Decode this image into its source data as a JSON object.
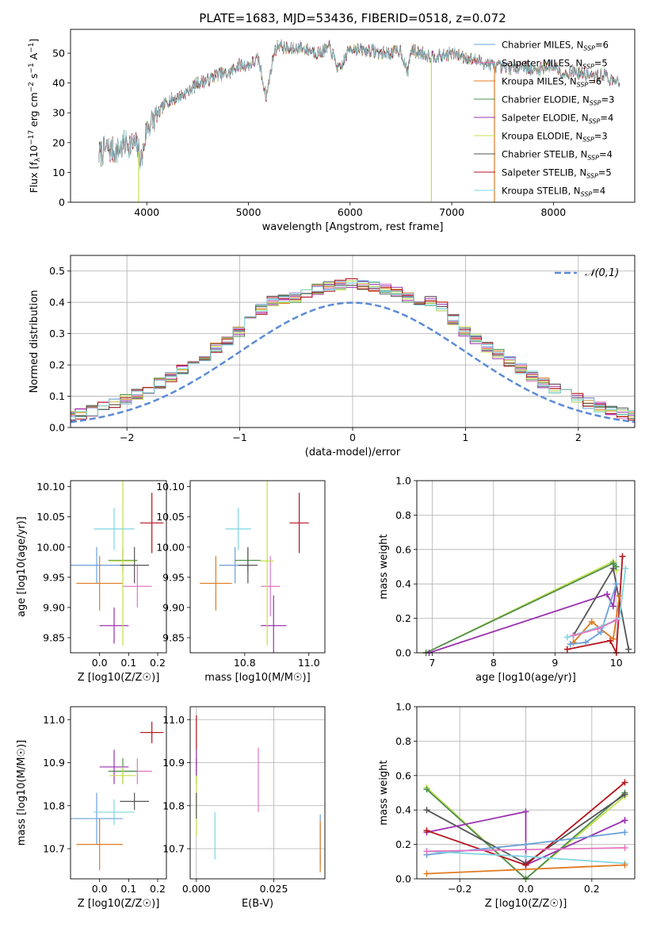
{
  "figure": {
    "title": "PLATE=1683, MJD=53436, FIBERID=0518, z=0.072"
  },
  "series": [
    {
      "name": "Chabrier MILES",
      "legend": "Chabrier MILES, N_SSP=6",
      "color": "#6aa0d8"
    },
    {
      "name": "Salpeter MILES",
      "legend": "Salpeter MILES, N_SSP=5",
      "color": "#e377c2"
    },
    {
      "name": "Kroupa MILES",
      "legend": "Kroupa MILES, N_SSP=6",
      "color": "#e07b22"
    },
    {
      "name": "Chabrier ELODIE",
      "legend": "Chabrier ELODIE, N_SSP=3",
      "color": "#4f8f4f"
    },
    {
      "name": "Salpeter ELODIE",
      "legend": "Salpeter ELODIE, N_SSP=4",
      "color": "#9b30b0"
    },
    {
      "name": "Kroupa ELODIE",
      "legend": "Kroupa ELODIE, N_SSP=3",
      "color": "#c4e04a"
    },
    {
      "name": "Chabrier STELIB",
      "legend": "Chabrier STELIB, N_SSP=4",
      "color": "#555555"
    },
    {
      "name": "Salpeter STELIB",
      "legend": "Salpeter STELIB, N_SSP=5",
      "color": "#b5131c"
    },
    {
      "name": "Kroupa STELIB",
      "legend": "Kroupa STELIB, N_SSP=4",
      "color": "#7fd6e0"
    }
  ],
  "chart_data": [
    {
      "id": "spectrum",
      "type": "line",
      "title": "PLATE=1683, MJD=53436, FIBERID=0518, z=0.072",
      "xlabel": "wavelength [Angstrom, rest frame]",
      "ylabel": "Flux [f_λ 10^-17 erg cm^-2 s^-1 A^-1]",
      "xlim": [
        3250,
        8800
      ],
      "ylim": [
        0,
        58
      ],
      "xticks": [
        4000,
        5000,
        6000,
        7000,
        8000
      ],
      "yticks": [
        0,
        10,
        20,
        30,
        40,
        50
      ],
      "legend_placement": "upper right",
      "x": [
        3530,
        3600,
        3700,
        3800,
        3900,
        3950,
        4000,
        4100,
        4200,
        4300,
        4400,
        4500,
        4600,
        4700,
        4800,
        4900,
        5000,
        5100,
        5175,
        5250,
        5300,
        5400,
        5500,
        5600,
        5700,
        5800,
        5893,
        6000,
        6100,
        6200,
        6300,
        6400,
        6500,
        6563,
        6600,
        6700,
        6800,
        6900,
        7000,
        7100,
        7200,
        7300,
        7400,
        7500,
        7600,
        7700,
        7800,
        7900,
        8000,
        8100,
        8200,
        8300,
        8400,
        8500,
        8600,
        8650
      ],
      "values": [
        16,
        18,
        17,
        20,
        19,
        14,
        25,
        29,
        34,
        35,
        37,
        40,
        41,
        43,
        43,
        46,
        46,
        48,
        35,
        50,
        53,
        51,
        52,
        51,
        50,
        52,
        44,
        52,
        51,
        51,
        50,
        50,
        51,
        43,
        51,
        50,
        49,
        49,
        50,
        49,
        48,
        47,
        46,
        45,
        45,
        46,
        44,
        45,
        46,
        43,
        44,
        43,
        42,
        43,
        40,
        41
      ],
      "dropouts": [
        {
          "series": "Kroupa ELODIE",
          "x": 3920
        },
        {
          "series": "Kroupa ELODIE",
          "x": 6800
        },
        {
          "series": "Kroupa MILES",
          "x": 7420
        }
      ]
    },
    {
      "id": "residuals",
      "type": "histogram",
      "xlabel": "(data-model)/error",
      "ylabel": "Normed distribution",
      "xlim": [
        -2.5,
        2.5
      ],
      "ylim": [
        0,
        0.55
      ],
      "xticks": [
        -2,
        -1,
        0,
        1,
        2
      ],
      "yticks": [
        0.0,
        0.1,
        0.2,
        0.3,
        0.4,
        0.5
      ],
      "grid": true,
      "reference_curve": {
        "label": "𝒩(0,1)",
        "mean": 0,
        "sd": 1,
        "style": "dashed",
        "color": "#5b8bd6"
      },
      "bin_width": 0.1,
      "legend_placement": "upper right"
    },
    {
      "id": "age_vs_Z",
      "type": "errorbar",
      "xlabel": "Z [log10(Z/Z☉)]",
      "ylabel": "age [log10(age/yr)]",
      "xlim": [
        -0.1,
        0.23
      ],
      "ylim": [
        9.825,
        10.11
      ],
      "xticks": [
        0.0,
        0.1,
        0.2
      ],
      "yticks": [
        9.85,
        9.9,
        9.95,
        10.0,
        10.05,
        10.1
      ],
      "points": [
        {
          "series": "Chabrier MILES",
          "x": -0.01,
          "y": 9.97,
          "xerr": 0.09,
          "yerr": 0.03
        },
        {
          "series": "Salpeter MILES",
          "x": 0.13,
          "y": 9.935,
          "xerr": 0.05,
          "yerr": 0.035
        },
        {
          "series": "Kroupa MILES",
          "x": 0.0,
          "y": 9.94,
          "xerr": 0.08,
          "yerr": 0.045
        },
        {
          "series": "Chabrier ELODIE",
          "x": 0.08,
          "y": 9.978,
          "xerr": 0.05,
          "yerr": 0.02
        },
        {
          "series": "Salpeter ELODIE",
          "x": 0.05,
          "y": 9.87,
          "xerr": 0.05,
          "yerr": 0.03
        },
        {
          "series": "Kroupa ELODIE",
          "x": 0.08,
          "y": 9.977,
          "xerr": 0.045,
          "yerr": 0.14
        },
        {
          "series": "Chabrier STELIB",
          "x": 0.12,
          "y": 9.97,
          "xerr": 0.05,
          "yerr": 0.03
        },
        {
          "series": "Salpeter STELIB",
          "x": 0.18,
          "y": 10.04,
          "xerr": 0.04,
          "yerr": 0.05
        },
        {
          "series": "Kroupa STELIB",
          "x": 0.05,
          "y": 10.03,
          "xerr": 0.07,
          "yerr": 0.035
        }
      ]
    },
    {
      "id": "age_vs_mass",
      "type": "errorbar",
      "xlabel": "mass [log10(M/M☉)]",
      "ylabel": "",
      "xlim": [
        10.63,
        11.05
      ],
      "ylim": [
        9.825,
        10.11
      ],
      "xticks": [
        10.8,
        11.0
      ],
      "yticks": [
        9.85,
        9.9,
        9.95,
        10.0,
        10.05,
        10.1
      ],
      "points": [
        {
          "series": "Chabrier MILES",
          "x": 10.77,
          "y": 9.97,
          "xerr": 0.05,
          "yerr": 0.03
        },
        {
          "series": "Salpeter MILES",
          "x": 10.88,
          "y": 9.935,
          "xerr": 0.03,
          "yerr": 0.05
        },
        {
          "series": "Kroupa MILES",
          "x": 10.71,
          "y": 9.94,
          "xerr": 0.05,
          "yerr": 0.045
        },
        {
          "series": "Chabrier ELODIE",
          "x": 10.81,
          "y": 9.978,
          "xerr": 0.04,
          "yerr": 0.02
        },
        {
          "series": "Salpeter ELODIE",
          "x": 10.89,
          "y": 9.87,
          "xerr": 0.04,
          "yerr": 0.05
        },
        {
          "series": "Kroupa ELODIE",
          "x": 10.87,
          "y": 9.977,
          "xerr": 0.02,
          "yerr": 0.14
        },
        {
          "series": "Chabrier STELIB",
          "x": 10.81,
          "y": 9.97,
          "xerr": 0.03,
          "yerr": 0.03
        },
        {
          "series": "Salpeter STELIB",
          "x": 10.97,
          "y": 10.04,
          "xerr": 0.03,
          "yerr": 0.05
        },
        {
          "series": "Kroupa STELIB",
          "x": 10.78,
          "y": 10.03,
          "xerr": 0.04,
          "yerr": 0.035
        }
      ]
    },
    {
      "id": "weight_vs_age",
      "type": "line",
      "xlabel": "age [log10(age/yr)]",
      "ylabel": "mass weight",
      "xlim": [
        6.75,
        10.3
      ],
      "ylim": [
        0,
        1
      ],
      "xticks": [
        7,
        8,
        9,
        10
      ],
      "yticks": [
        0.0,
        0.2,
        0.4,
        0.6,
        0.8,
        1.0
      ],
      "grid": true,
      "series": [
        {
          "name": "Kroupa ELODIE",
          "x": [
            6.9,
            9.95,
            10.0
          ],
          "values": [
            0.0,
            0.53,
            0.48
          ]
        },
        {
          "name": "Chabrier ELODIE",
          "x": [
            6.9,
            9.95,
            10.0
          ],
          "values": [
            0.0,
            0.52,
            0.5
          ]
        },
        {
          "name": "Salpeter ELODIE",
          "x": [
            6.95,
            9.85,
            9.95,
            10.0
          ],
          "values": [
            0.0,
            0.34,
            0.27,
            0.4
          ]
        },
        {
          "name": "Chabrier STELIB",
          "x": [
            9.3,
            9.95,
            10.2
          ],
          "values": [
            0.1,
            0.49,
            0.02
          ]
        },
        {
          "name": "Salpeter STELIB",
          "x": [
            9.2,
            9.9,
            10.0,
            10.1
          ],
          "values": [
            0.02,
            0.07,
            0.0,
            0.56
          ]
        },
        {
          "name": "Kroupa MILES",
          "x": [
            9.3,
            9.6,
            9.95,
            10.05
          ],
          "values": [
            0.06,
            0.18,
            0.08,
            0.33
          ]
        },
        {
          "name": "Chabrier MILES",
          "x": [
            9.25,
            9.5,
            9.75,
            10.0
          ],
          "values": [
            0.05,
            0.06,
            0.12,
            0.4
          ]
        },
        {
          "name": "Kroupa STELIB",
          "x": [
            9.2,
            9.8,
            10.05,
            10.15
          ],
          "values": [
            0.09,
            0.16,
            0.2,
            0.49
          ]
        },
        {
          "name": "Salpeter MILES",
          "x": [
            9.3,
            9.7,
            10.0
          ],
          "values": [
            0.1,
            0.14,
            0.19
          ]
        }
      ]
    },
    {
      "id": "mass_vs_Z",
      "type": "errorbar",
      "xlabel": "Z [log10(Z/Z☉)]",
      "ylabel": "mass [log10(M/M☉)]",
      "xlim": [
        -0.1,
        0.23
      ],
      "ylim": [
        10.63,
        11.03
      ],
      "xticks": [
        0.0,
        0.1,
        0.2
      ],
      "yticks": [
        10.7,
        10.8,
        10.9,
        11.0
      ],
      "points": [
        {
          "series": "Chabrier MILES",
          "x": -0.01,
          "y": 10.77,
          "xerr": 0.09,
          "yerr": 0.06
        },
        {
          "series": "Salpeter MILES",
          "x": 0.13,
          "y": 10.88,
          "xerr": 0.05,
          "yerr": 0.03
        },
        {
          "series": "Kroupa MILES",
          "x": 0.0,
          "y": 10.71,
          "xerr": 0.08,
          "yerr": 0.06
        },
        {
          "series": "Chabrier ELODIE",
          "x": 0.08,
          "y": 10.88,
          "xerr": 0.05,
          "yerr": 0.03
        },
        {
          "series": "Salpeter ELODIE",
          "x": 0.05,
          "y": 10.89,
          "xerr": 0.05,
          "yerr": 0.04
        },
        {
          "series": "Kroupa ELODIE",
          "x": 0.08,
          "y": 10.87,
          "xerr": 0.045,
          "yerr": 0.02
        },
        {
          "series": "Chabrier STELIB",
          "x": 0.12,
          "y": 10.81,
          "xerr": 0.05,
          "yerr": 0.02
        },
        {
          "series": "Salpeter STELIB",
          "x": 0.18,
          "y": 10.97,
          "xerr": 0.04,
          "yerr": 0.025
        },
        {
          "series": "Kroupa STELIB",
          "x": 0.05,
          "y": 10.785,
          "xerr": 0.07,
          "yerr": 0.03
        }
      ]
    },
    {
      "id": "mass_vs_EBV",
      "type": "errorbar",
      "xlabel": "E(B-V)",
      "ylabel": "",
      "xlim": [
        -0.002,
        0.0415
      ],
      "ylim": [
        10.63,
        11.03
      ],
      "xticks": [
        0.0,
        0.025
      ],
      "yticks": [
        10.7,
        10.8,
        10.9,
        11.0
      ],
      "grid": true,
      "points": [
        {
          "series": "Chabrier MILES",
          "x": 0.04,
          "y": 10.72,
          "xerr": 0,
          "yerr": 0.06
        },
        {
          "series": "Salpeter MILES",
          "x": 0.02,
          "y": 10.86,
          "xerr": 0,
          "yerr": 0.075
        },
        {
          "series": "Kroupa MILES",
          "x": 0.04,
          "y": 10.705,
          "xerr": 0,
          "yerr": 0.06
        },
        {
          "series": "Chabrier ELODIE",
          "x": 0.0,
          "y": 10.88,
          "xerr": 0,
          "yerr": 0.03
        },
        {
          "series": "Salpeter ELODIE",
          "x": 0.0,
          "y": 10.9,
          "xerr": 0,
          "yerr": 0.03
        },
        {
          "series": "Kroupa ELODIE",
          "x": 0.0,
          "y": 10.8,
          "xerr": 0,
          "yerr": 0.07
        },
        {
          "series": "Chabrier STELIB",
          "x": 0.0,
          "y": 10.8,
          "xerr": 0,
          "yerr": 0.03
        },
        {
          "series": "Salpeter STELIB",
          "x": 0.0,
          "y": 10.97,
          "xerr": 0,
          "yerr": 0.04
        },
        {
          "series": "Kroupa STELIB",
          "x": 0.006,
          "y": 10.73,
          "xerr": 0,
          "yerr": 0.055
        }
      ]
    },
    {
      "id": "weight_vs_Z",
      "type": "line",
      "xlabel": "Z [log10(Z/Z☉)]",
      "ylabel": "mass weight",
      "xlim": [
        -0.33,
        0.33
      ],
      "ylim": [
        0,
        1
      ],
      "xticks": [
        -0.2,
        0.0,
        0.2
      ],
      "yticks": [
        0.0,
        0.2,
        0.4,
        0.6,
        0.8,
        1.0
      ],
      "grid": true,
      "series": [
        {
          "name": "Kroupa ELODIE",
          "x": [
            -0.3,
            0.0,
            0.3
          ],
          "values": [
            0.53,
            0.0,
            0.48
          ]
        },
        {
          "name": "Chabrier ELODIE",
          "x": [
            -0.3,
            0.0,
            0.3
          ],
          "values": [
            0.52,
            0.0,
            0.5
          ]
        },
        {
          "name": "Chabrier STELIB",
          "x": [
            -0.3,
            0.0,
            0.3
          ],
          "values": [
            0.4,
            0.09,
            0.49
          ]
        },
        {
          "name": "Salpeter ELODIE",
          "x": [
            -0.3,
            0.0,
            0.0,
            0.3,
            0.3
          ],
          "values": [
            0.27,
            0.39,
            0.08,
            0.34,
            0.34
          ]
        },
        {
          "name": "Salpeter STELIB",
          "x": [
            -0.3,
            0.0,
            0.3
          ],
          "values": [
            0.28,
            0.08,
            0.56
          ]
        },
        {
          "name": "Chabrier MILES",
          "x": [
            -0.3,
            0.0,
            0.3
          ],
          "values": [
            0.14,
            0.2,
            0.27
          ]
        },
        {
          "name": "Kroupa STELIB",
          "x": [
            -0.3,
            0.0,
            0.3
          ],
          "values": [
            0.16,
            0.13,
            0.09
          ]
        },
        {
          "name": "Salpeter MILES",
          "x": [
            -0.3,
            0.3
          ],
          "values": [
            0.16,
            0.18
          ]
        },
        {
          "name": "Kroupa MILES",
          "x": [
            -0.3,
            0.3
          ],
          "values": [
            0.03,
            0.08
          ]
        }
      ]
    }
  ]
}
